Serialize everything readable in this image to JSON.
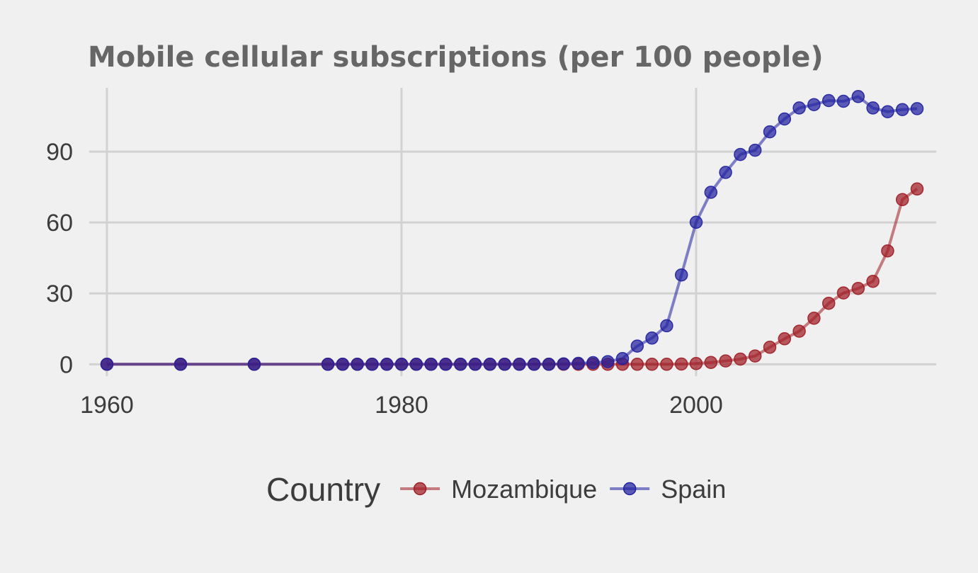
{
  "chart_data": {
    "type": "line",
    "title": "Mobile cellular subscriptions (per 100 people)",
    "xlabel": "",
    "ylabel": "",
    "xlim": [
      1958.8,
      2016.3
    ],
    "ylim": [
      -5,
      117
    ],
    "x_ticks": [
      1960,
      1980,
      2000
    ],
    "y_ticks": [
      0,
      30,
      60,
      90
    ],
    "grid": true,
    "legend": {
      "title": "Country",
      "position": "bottom"
    },
    "series": [
      {
        "name": "Mozambique",
        "color": "#a01c24",
        "x": [
          1960,
          1965,
          1970,
          1975,
          1976,
          1977,
          1978,
          1979,
          1980,
          1981,
          1982,
          1983,
          1984,
          1985,
          1986,
          1987,
          1988,
          1989,
          1990,
          1991,
          1992,
          1993,
          1994,
          1995,
          1996,
          1997,
          1998,
          1999,
          2000,
          2001,
          2002,
          2003,
          2004,
          2005,
          2006,
          2007,
          2008,
          2009,
          2010,
          2011,
          2012,
          2013,
          2014,
          2015
        ],
        "values": [
          0,
          0,
          0,
          0,
          0,
          0,
          0,
          0,
          0,
          0,
          0,
          0,
          0,
          0,
          0,
          0,
          0,
          0,
          0,
          0,
          0,
          0,
          0,
          0,
          0,
          0,
          0,
          0.1,
          0.3,
          0.8,
          1.4,
          2.2,
          3.5,
          7.2,
          10.8,
          14,
          19.5,
          25.8,
          30.2,
          32.1,
          35.1,
          48,
          69.7,
          74.2
        ]
      },
      {
        "name": "Spain",
        "color": "#2020a0",
        "x": [
          1960,
          1965,
          1970,
          1975,
          1976,
          1977,
          1978,
          1979,
          1980,
          1981,
          1982,
          1983,
          1984,
          1985,
          1986,
          1987,
          1988,
          1989,
          1990,
          1991,
          1992,
          1993,
          1994,
          1995,
          1996,
          1997,
          1998,
          1999,
          2000,
          2001,
          2002,
          2003,
          2004,
          2005,
          2006,
          2007,
          2008,
          2009,
          2010,
          2011,
          2012,
          2013,
          2014,
          2015
        ],
        "values": [
          0,
          0,
          0,
          0,
          0,
          0,
          0,
          0,
          0,
          0,
          0,
          0,
          0,
          0,
          0,
          0,
          0,
          0,
          0,
          0.2,
          0.4,
          0.7,
          1.1,
          2.4,
          7.7,
          11.1,
          16.3,
          37.8,
          60.1,
          72.8,
          81.2,
          88.8,
          90.6,
          98.4,
          103.8,
          108.5,
          109.9,
          111.6,
          111.3,
          113.3,
          108.5,
          106.9,
          107.8,
          108.2
        ]
      }
    ]
  }
}
